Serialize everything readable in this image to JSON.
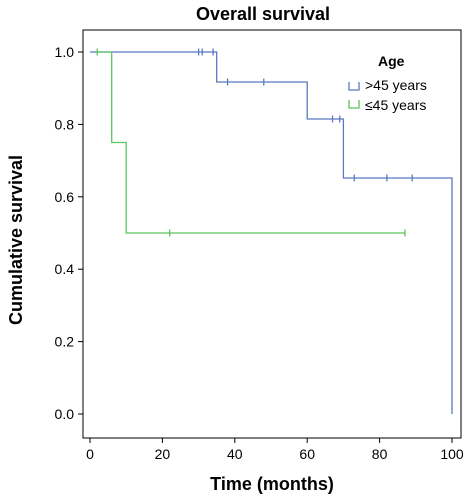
{
  "chart_data": {
    "type": "line",
    "title": "Overall survival",
    "xlabel": "Time (months)",
    "ylabel": "Cumulative survival",
    "xlim": [
      0,
      100
    ],
    "ylim": [
      0.0,
      1.0
    ],
    "x_ticks": [
      0,
      20,
      40,
      60,
      80,
      100
    ],
    "y_ticks": [
      0.0,
      0.2,
      0.4,
      0.6,
      0.8,
      1.0
    ],
    "x_tick_labels": [
      "0",
      "20",
      "40",
      "60",
      "80",
      "100"
    ],
    "y_tick_labels": [
      "0.0",
      "0.2",
      "0.4",
      "0.6",
      "0.8",
      "1.0"
    ],
    "grid": false,
    "legend": {
      "title": "Age",
      "position": "top-right"
    },
    "series": [
      {
        "name": ">45 years",
        "color": "#5b78c4",
        "steps": [
          [
            0,
            1.0
          ],
          [
            35,
            1.0
          ],
          [
            35,
            0.917
          ],
          [
            60,
            0.917
          ],
          [
            60,
            0.815
          ],
          [
            70,
            0.815
          ],
          [
            70,
            0.652
          ],
          [
            100,
            0.652
          ],
          [
            100,
            0.0
          ]
        ],
        "censored": [
          [
            30,
            1.0
          ],
          [
            31,
            1.0
          ],
          [
            34,
            1.0
          ],
          [
            38,
            0.917
          ],
          [
            48,
            0.917
          ],
          [
            67,
            0.815
          ],
          [
            69,
            0.815
          ],
          [
            73,
            0.652
          ],
          [
            82,
            0.652
          ],
          [
            89,
            0.652
          ]
        ]
      },
      {
        "name": "≤45 years",
        "color": "#5cc45c",
        "steps": [
          [
            2,
            1.0
          ],
          [
            6,
            1.0
          ],
          [
            6,
            0.75
          ],
          [
            10,
            0.75
          ],
          [
            10,
            0.5
          ],
          [
            87,
            0.5
          ]
        ],
        "censored": [
          [
            2,
            1.0
          ],
          [
            22,
            0.5
          ],
          [
            87,
            0.5
          ]
        ]
      }
    ]
  }
}
